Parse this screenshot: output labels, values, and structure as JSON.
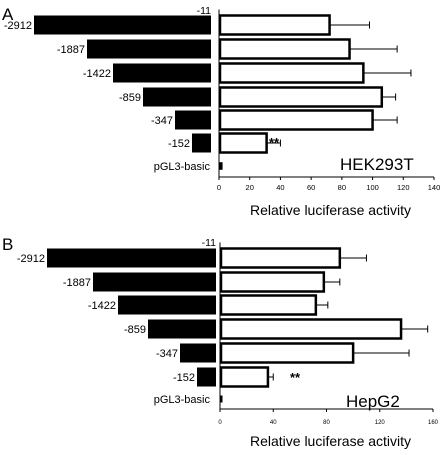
{
  "panels": [
    {
      "letter": "A",
      "cell_line": "HEK293T",
      "origin": "-11",
      "constructs": [
        "-2912",
        "-1887",
        "-1422",
        "-859",
        "-347",
        "-152",
        "pGL3-basic"
      ],
      "significance": "**",
      "xlabel": "Relative luciferase activity"
    },
    {
      "letter": "B",
      "cell_line": "HepG2",
      "origin": "-11",
      "constructs": [
        "-2912",
        "-1887",
        "-1422",
        "-859",
        "-347",
        "-152",
        "pGL3-basic"
      ],
      "significance": "**",
      "xlabel": "Relative luciferase activity"
    }
  ],
  "chart_data": [
    {
      "type": "bar",
      "orientation": "horizontal",
      "title": "HEK293T",
      "xlabel": "Relative luciferase activity",
      "categories": [
        "-2912",
        "-1887",
        "-1422",
        "-859",
        "-347",
        "-152",
        "pGL3-basic"
      ],
      "values": [
        72,
        85,
        94,
        106,
        100,
        31,
        2
      ],
      "errors": [
        26,
        31,
        31,
        9,
        16,
        9,
        1
      ],
      "xlim": [
        0,
        140
      ],
      "xticks": [
        0,
        20,
        40,
        60,
        80,
        100,
        120,
        140
      ],
      "annotations": [
        {
          "category": "-152",
          "text": "**"
        }
      ],
      "grid": false
    },
    {
      "type": "bar",
      "orientation": "horizontal",
      "title": "HepG2",
      "xlabel": "Relative luciferase activity",
      "categories": [
        "-2912",
        "-1887",
        "-1422",
        "-859",
        "-347",
        "-152",
        "pGL3-basic"
      ],
      "values": [
        90,
        78,
        72,
        136,
        100,
        36,
        1
      ],
      "errors": [
        20,
        12,
        9,
        20,
        42,
        4,
        0.5
      ],
      "xlim": [
        0,
        160
      ],
      "xticks": [
        0,
        40,
        80,
        120,
        160
      ],
      "annotations": [
        {
          "category": "-152",
          "text": "**"
        }
      ],
      "grid": false
    }
  ]
}
